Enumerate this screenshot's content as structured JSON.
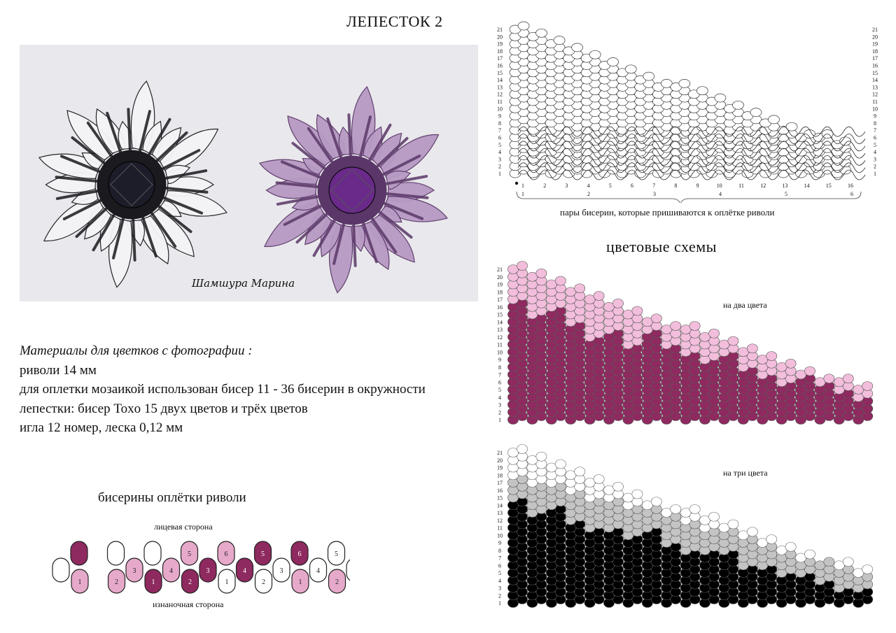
{
  "title": "ЛЕПЕСТОК 2",
  "photo": {
    "signature": "Шамшура Марина",
    "flowers": [
      {
        "colors": [
          "#f4f4f6",
          "#1a1a1f"
        ]
      },
      {
        "colors": [
          "#b79ac3",
          "#5a3768"
        ]
      }
    ]
  },
  "materials": {
    "heading": "Материалы для цветков с фотографии :",
    "lines": [
      "риволи 14 мм",
      "для оплетки мозаикой использован бисер 11 - 36 бисерин в окружности",
      "лепестки: бисер Toxo 15 двух цветов и трёх цветов",
      "игла 12 номер, леска 0,12 мм"
    ]
  },
  "wrap": {
    "title": "бисерины оплётки риволи",
    "front_label": "лицевая сторона",
    "back_label": "изнаночная сторона",
    "top_row": [
      {
        "label": "",
        "color": "dark"
      },
      {
        "label": "",
        "color": "white"
      },
      {
        "label": "",
        "color": "white"
      },
      {
        "label": "5",
        "color": "light"
      },
      {
        "label": "6",
        "color": "light"
      },
      {
        "label": "5",
        "color": "dark"
      },
      {
        "label": "6",
        "color": "dark"
      },
      {
        "label": "5",
        "color": "white"
      }
    ],
    "mid_row": [
      {
        "label": "",
        "color": "white"
      },
      {
        "label": "3",
        "color": "light"
      },
      {
        "label": "4",
        "color": "light"
      },
      {
        "label": "3",
        "color": "dark"
      },
      {
        "label": "4",
        "color": "dark"
      },
      {
        "label": "3",
        "color": "white"
      },
      {
        "label": "4",
        "color": "white"
      },
      {
        "label": "",
        "color": "white"
      }
    ],
    "bot_row": [
      {
        "label": "1",
        "color": "light"
      },
      {
        "label": "2",
        "color": "light"
      },
      {
        "label": "1",
        "color": "dark"
      },
      {
        "label": "2",
        "color": "dark"
      },
      {
        "label": "1",
        "color": "white"
      },
      {
        "label": "2",
        "color": "white"
      },
      {
        "label": "1",
        "color": "light"
      },
      {
        "label": "2",
        "color": "light"
      }
    ],
    "colors": {
      "dark": "#8e2a5f",
      "light": "#e6a9c9",
      "white": "#ffffff"
    }
  },
  "pattern": {
    "column_heights": [
      21,
      20,
      19,
      18,
      17,
      16,
      15,
      14,
      13,
      13,
      12,
      11,
      10,
      9,
      8,
      7,
      6,
      6,
      5
    ],
    "row_numbers": [
      "1",
      "2",
      "3",
      "4",
      "5",
      "6",
      "7",
      "8",
      "9",
      "10",
      "11",
      "12",
      "13",
      "14",
      "15",
      "16",
      "17",
      "18",
      "19",
      "20",
      "21"
    ],
    "pair_numbers": [
      "1",
      "2",
      "3",
      "4",
      "5",
      "6",
      "7",
      "8",
      "9",
      "10",
      "11",
      "12",
      "13",
      "14",
      "15",
      "16"
    ],
    "group_numbers": [
      "1",
      "2",
      "3",
      "4",
      "5",
      "6"
    ],
    "pairs_caption": "пары бисерин, которые пришиваются к оплётке риволи"
  },
  "color_schemes": {
    "title": "цветовые схемы",
    "two_colors": {
      "label": "на два цвета",
      "colors": {
        "dark": "#8e2a5f",
        "light": "#f2bedb"
      },
      "dark_heights": [
        16,
        14,
        15,
        13,
        11,
        12,
        10,
        12,
        10,
        9,
        8,
        9,
        7,
        6,
        5,
        6,
        5,
        4,
        3
      ]
    },
    "three_colors": {
      "label": "на три цвета",
      "colors": {
        "dark": "#000000",
        "mid": "#c4c4c4",
        "light": "#ffffff"
      },
      "dark_heights": [
        14,
        12,
        13,
        11,
        10,
        10,
        9,
        10,
        8,
        7,
        7,
        7,
        5,
        5,
        4,
        4,
        3,
        2,
        2
      ],
      "mid_heights": [
        17,
        16,
        16,
        15,
        14,
        14,
        13,
        13,
        12,
        11,
        10,
        10,
        9,
        8,
        7,
        6,
        6,
        5,
        4
      ]
    }
  }
}
